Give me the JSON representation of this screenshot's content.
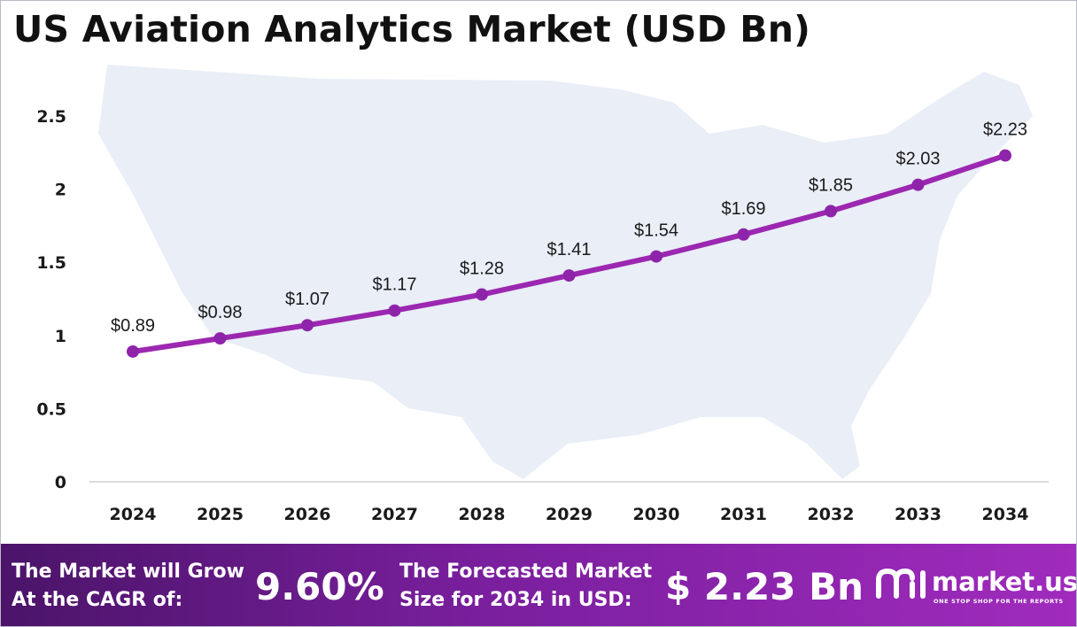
{
  "title": "US Aviation Analytics Market (USD Bn)",
  "colors": {
    "line": "#9c27b0",
    "marker": "#8e24aa",
    "map_background": "#e9eef7",
    "footer_start": "#4b1469",
    "footer_end": "#a02bbd"
  },
  "chart_data": {
    "type": "line",
    "title": "US Aviation Analytics Market (USD Bn)",
    "categories": [
      "2024",
      "2025",
      "2026",
      "2027",
      "2028",
      "2029",
      "2030",
      "2031",
      "2032",
      "2033",
      "2034"
    ],
    "series": [
      {
        "values": [
          0.89,
          0.98,
          1.07,
          1.17,
          1.28,
          1.41,
          1.54,
          1.69,
          1.85,
          2.03,
          2.23
        ],
        "data_labels": [
          "$0.89",
          "$0.98",
          "$1.07",
          "$1.17",
          "$1.28",
          "$1.41",
          "$1.54",
          "$1.69",
          "$1.85",
          "$2.03",
          "$2.23"
        ]
      }
    ],
    "ylim": [
      0,
      2.5
    ],
    "yticks": [
      0,
      0.5,
      1,
      1.5,
      2,
      2.5
    ],
    "ytick_labels": [
      "0",
      "0.5",
      "1",
      "1.5",
      "2",
      "2.5"
    ],
    "grid": false,
    "legend": "none"
  },
  "footer": {
    "cagr_label_line1": "The Market will Grow",
    "cagr_label_line2": "At the CAGR of:",
    "cagr_value": "9.60%",
    "forecast_label_line1": "The Forecasted Market",
    "forecast_label_line2": "Size for 2034 in USD:",
    "forecast_value": "$ 2.23 Bn",
    "brand_name": "market.us",
    "brand_tagline": "ONE STOP SHOP FOR THE REPORTS",
    "brand_icon": "market-us-logo-icon"
  }
}
